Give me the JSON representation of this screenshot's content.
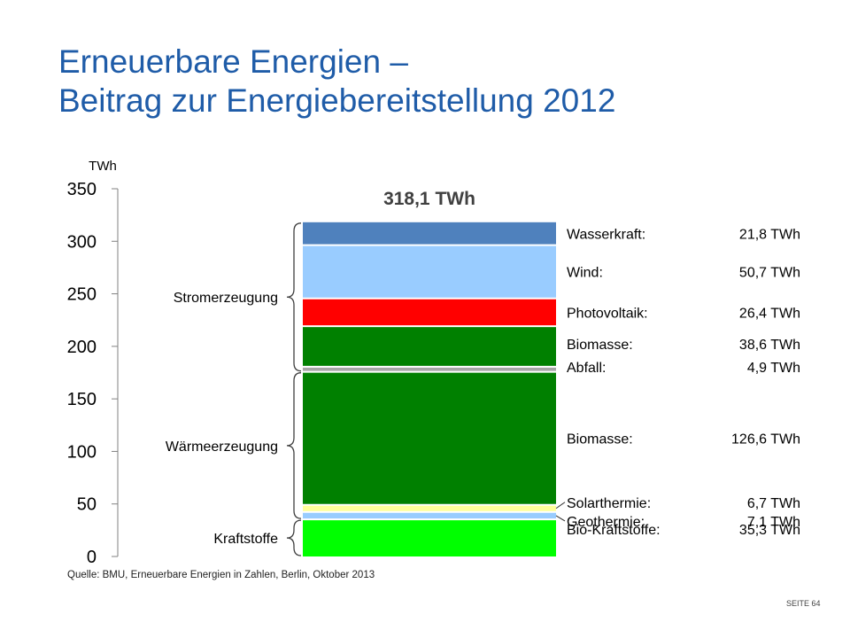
{
  "title_line1": "Erneuerbare Energien –",
  "title_line2": "Beitrag zur Energiebereitstellung 2012",
  "source": "Quelle: BMU, Erneuerbare Energien in Zahlen, Berlin, Oktober 2013",
  "slide_number": "SEITE 64",
  "chart_data": {
    "type": "bar",
    "stacked": true,
    "ylabel": "TWh",
    "ylim": [
      0,
      350
    ],
    "yticks": [
      0,
      50,
      100,
      150,
      200,
      250,
      300,
      350
    ],
    "total_label": "318,1 TWh",
    "groups": [
      {
        "label": "Stromerzeugung",
        "first": 0,
        "last": 4
      },
      {
        "label": "Wärmeerzeugung",
        "first": 5,
        "last": 7
      },
      {
        "label": "Kraftstoffe",
        "first": 8,
        "last": 8
      }
    ],
    "segments": [
      {
        "name": "Wasserkraft:",
        "value": 21.8,
        "value_label": "21,8 TWh",
        "color": "#4f81bd"
      },
      {
        "name": "Wind:",
        "value": 50.7,
        "value_label": "50,7 TWh",
        "color": "#99ccff"
      },
      {
        "name": "Photovoltaik:",
        "value": 26.4,
        "value_label": "26,4 TWh",
        "color": "#ff0000"
      },
      {
        "name": "Biomasse:",
        "value": 38.6,
        "value_label": "38,6 TWh",
        "color": "#008000"
      },
      {
        "name": "Abfall:",
        "value": 4.9,
        "value_label": "4,9 TWh",
        "color": "#a6a6a6"
      },
      {
        "name": "Biomasse:",
        "value": 126.6,
        "value_label": "126,6 TWh",
        "color": "#008000"
      },
      {
        "name": "Solarthermie:",
        "value": 6.7,
        "value_label": "6,7 TWh",
        "color": "#ffff99"
      },
      {
        "name": "Geothermie:",
        "value": 7.1,
        "value_label": "7,1 TWh",
        "color": "#99ccff"
      },
      {
        "name": "Bio-Kraftstoffe:",
        "value": 35.3,
        "value_label": "35,3 TWh",
        "color": "#00ff00"
      }
    ]
  }
}
